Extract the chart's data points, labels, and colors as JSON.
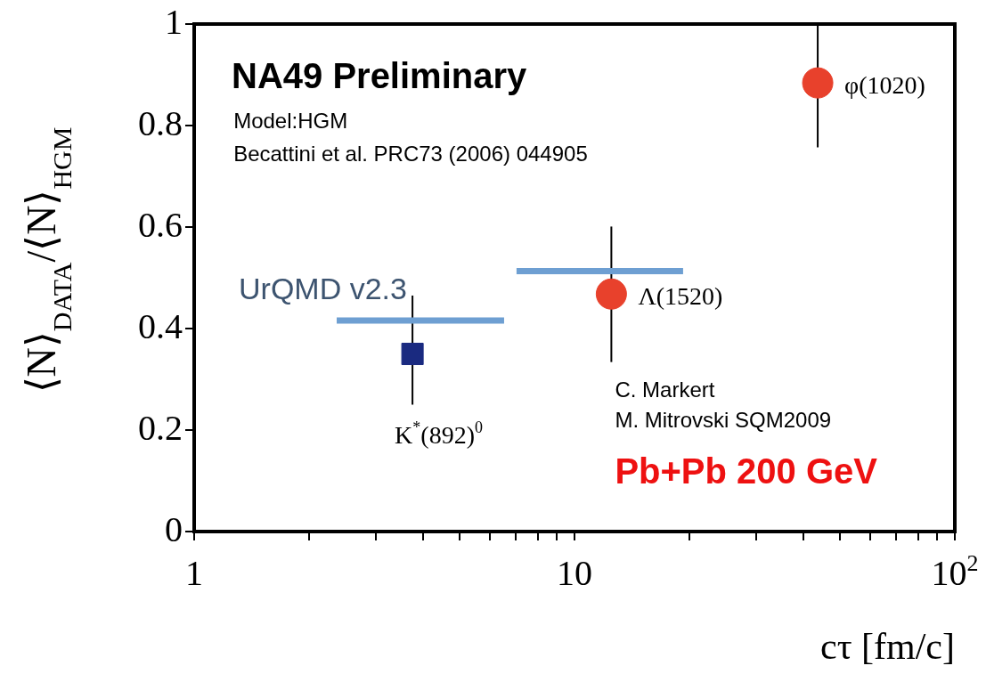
{
  "chart_data": {
    "type": "scatter",
    "title": "NA49 Preliminary",
    "xlabel": "cτ [fm/c]",
    "ylabel": "⟨N⟩$_{DATA}$/⟨N⟩$_{HGM}$",
    "log": "x",
    "grid": false,
    "legend": false,
    "xlim": [
      1,
      100
    ],
    "xticks": [
      1,
      {
        "value": 2,
        "label": null
      },
      {
        "value": 3,
        "label": null
      },
      {
        "value": 4,
        "label": null
      },
      {
        "value": 5,
        "label": null
      },
      {
        "value": 6,
        "label": null
      },
      {
        "value": 7,
        "label": null
      },
      {
        "value": 8,
        "label": null
      },
      {
        "value": 9,
        "label": null
      },
      10,
      {
        "value": 20,
        "label": null
      },
      {
        "value": 30,
        "label": null
      },
      {
        "value": 40,
        "label": null
      },
      {
        "value": 50,
        "label": null
      },
      {
        "value": 60,
        "label": null
      },
      {
        "value": 70,
        "label": null
      },
      {
        "value": 80,
        "label": null
      },
      {
        "value": 90,
        "label": null
      },
      {
        "value": 100,
        "label": "10$^{2}$"
      }
    ],
    "ylim": [
      0,
      1
    ],
    "yticks": [
      0,
      0.2,
      0.4,
      0.6,
      0.8,
      1
    ],
    "series": [
      {
        "type": "scatter",
        "marker": "square",
        "color": "#1a2a80",
        "x": [
          3.75
        ],
        "values": [
          0.35
        ],
        "errors": [
          [
            0.25,
            0.465
          ]
        ]
      },
      {
        "type": "scatter",
        "marker": "circle",
        "color": "#e8412c",
        "x": [
          12.5,
          43.6
        ],
        "values": [
          0.468,
          0.884
        ],
        "errors": [
          [
            0.334,
            0.601
          ],
          [
            0.757,
            1.0
          ]
        ]
      },
      {
        "type": "line",
        "name": "UrQMD v2.3",
        "color": "#6e9fd2",
        "x": [
          2.37,
          6.53,
          6.8,
          7.04,
          19.3
        ],
        "values": [
          0.416,
          0.416,
          null,
          0.513,
          0.513
        ]
      }
    ],
    "annotations": [
      {
        "text": "K$^{*}$(892)$^{0}$",
        "x": 3.75,
        "y": 0.35
      },
      {
        "text": "Λ(1520)",
        "x": 12.5,
        "y": 0.468
      },
      {
        "text": "φ(1020)",
        "x": 43.6,
        "y": 0.884
      },
      "Model:HGM",
      "Becattini et al. PRC73 (2006) 044905",
      "C. Markert",
      "M. Mitrovski SQM2009",
      "Pb+Pb 200 GeV"
    ]
  }
}
